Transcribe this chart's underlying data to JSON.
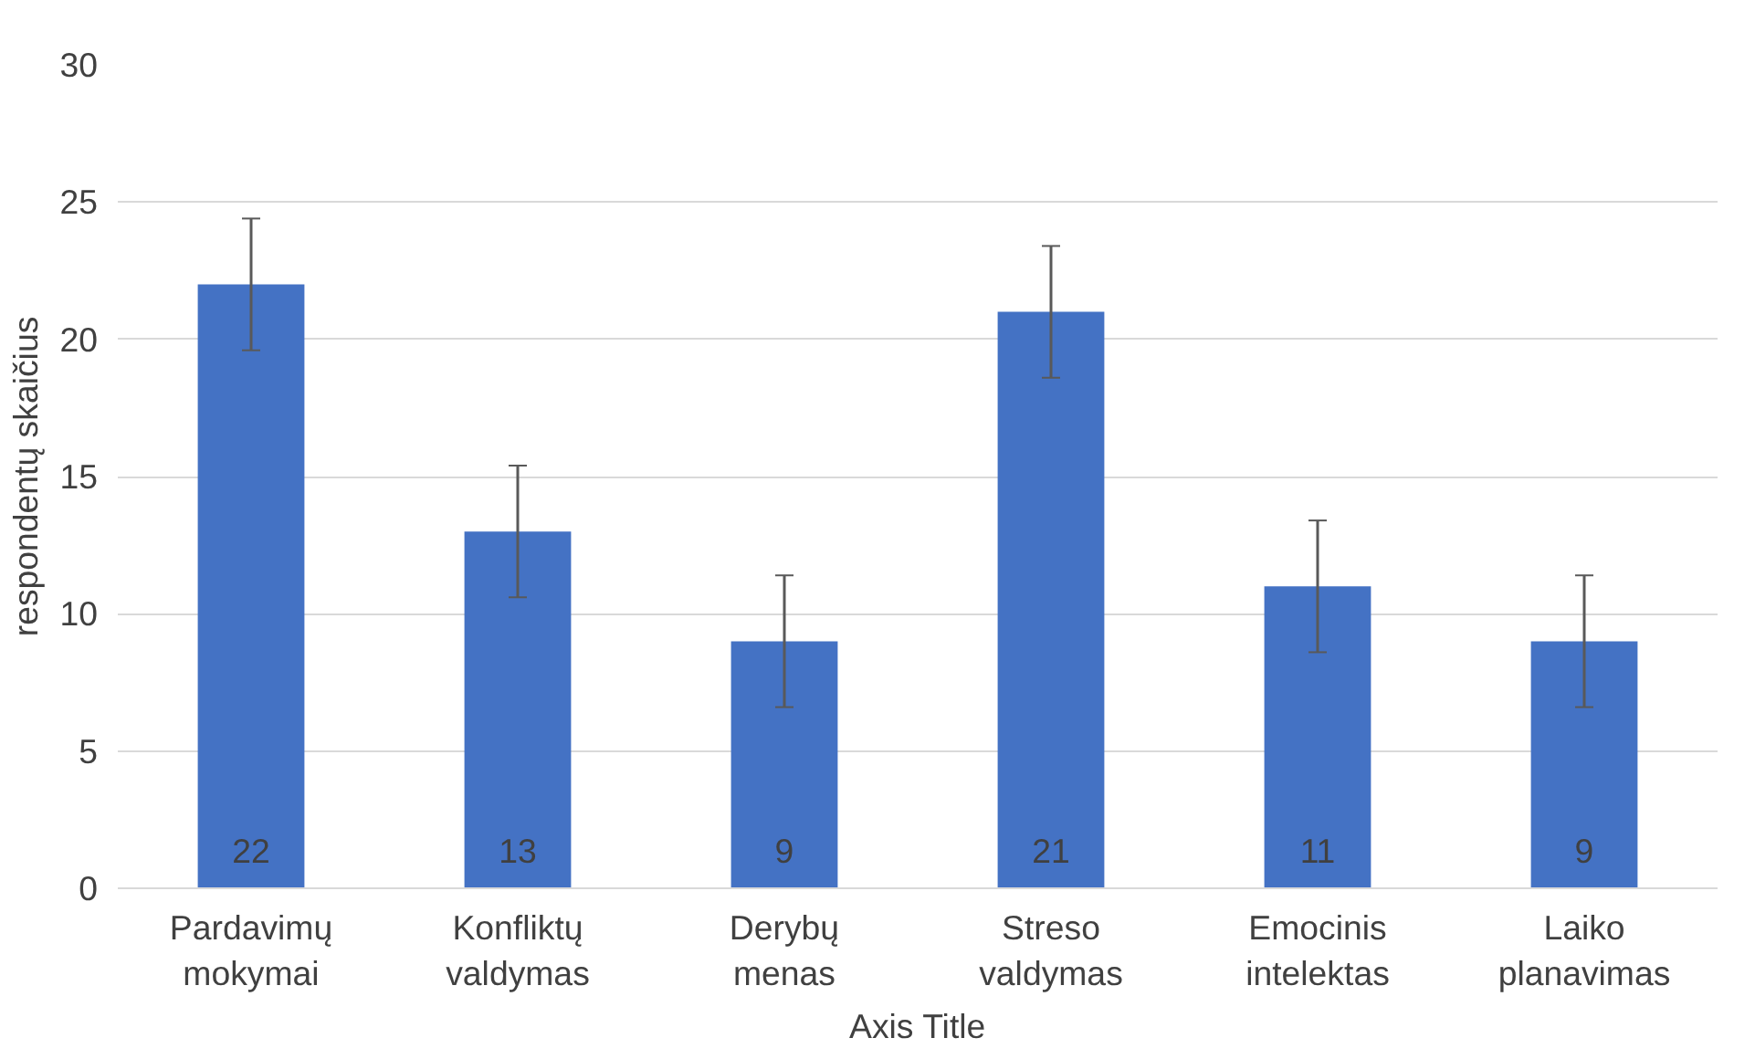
{
  "chart_data": {
    "type": "bar",
    "categories": [
      "Pardavimų mokymai",
      "Konfliktų valdymas",
      "Derybų menas",
      "Streso valdymas",
      "Emocinis intelektas",
      "Laiko planavimas"
    ],
    "values": [
      22,
      13,
      9,
      21,
      11,
      9
    ],
    "errors": [
      2.4,
      2.4,
      2.4,
      2.4,
      2.4,
      2.4
    ],
    "color": "#4472c4",
    "xlabel": "Axis Title",
    "ylabel": "respondentų skaičius",
    "ylim": [
      0,
      30
    ],
    "yticks": [
      0,
      5,
      10,
      15,
      20,
      25,
      30
    ],
    "grid": "y",
    "data_labels": true
  }
}
